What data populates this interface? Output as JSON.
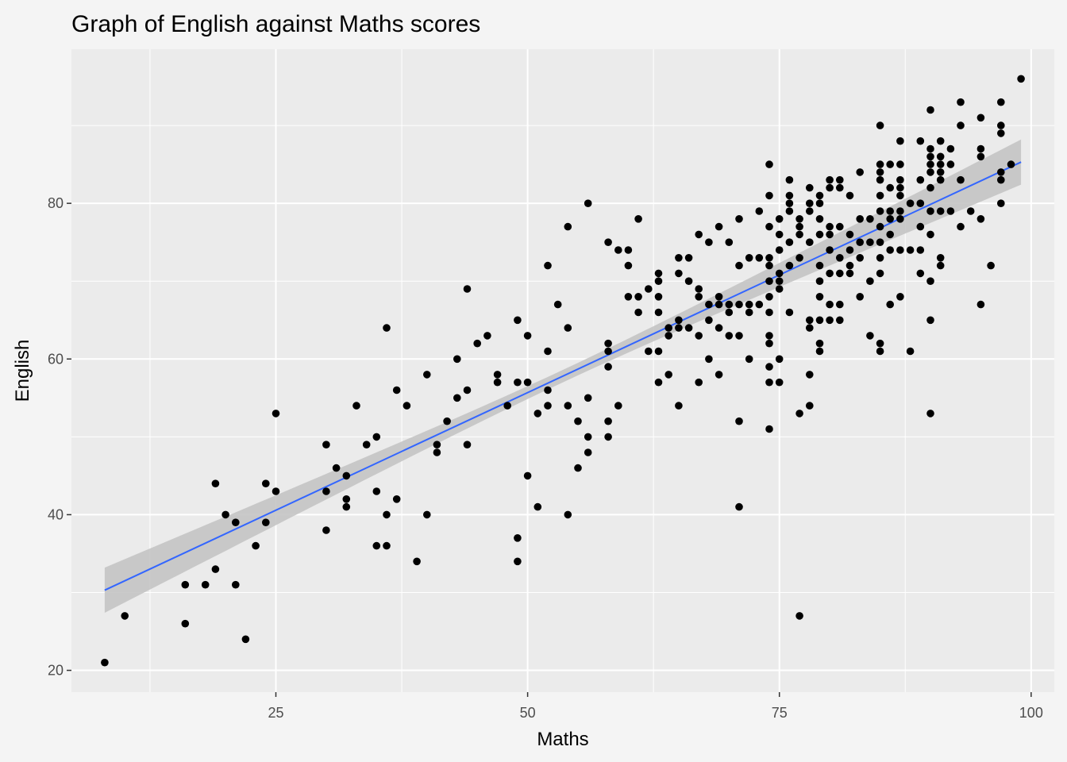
{
  "chart_data": {
    "type": "scatter",
    "title": "Graph of English against Maths scores",
    "xlabel": "Maths",
    "ylabel": "English",
    "xlim": [
      4.7,
      102.3
    ],
    "ylim": [
      17.2,
      99.8
    ],
    "x_ticks": [
      25,
      50,
      75,
      100
    ],
    "x_tick_labels": [
      "25",
      "50",
      "75",
      "100"
    ],
    "y_ticks": [
      20,
      40,
      60,
      80
    ],
    "y_tick_labels": [
      "20",
      "40",
      "60",
      "80"
    ],
    "grid": true,
    "colors": {
      "panel_background": "#ebebeb",
      "grid": "#ffffff",
      "points": "#000000",
      "trend_line": "#3366ff",
      "confidence_band": "#c4c4c4"
    },
    "trend_line": {
      "method": "linear",
      "x": [
        8,
        99
      ],
      "y": [
        30.3,
        85.3
      ],
      "ci_halfwidth_ends": 2.9,
      "ci_halfwidth_mid": 0.8
    },
    "points": [
      [
        8,
        21
      ],
      [
        10,
        27
      ],
      [
        16,
        31
      ],
      [
        16,
        26
      ],
      [
        18,
        31
      ],
      [
        19,
        44
      ],
      [
        19,
        33
      ],
      [
        20,
        40
      ],
      [
        21,
        39
      ],
      [
        21,
        31
      ],
      [
        22,
        24
      ],
      [
        23,
        36
      ],
      [
        24,
        44
      ],
      [
        24,
        39
      ],
      [
        25,
        53
      ],
      [
        25,
        43
      ],
      [
        30,
        49
      ],
      [
        30,
        43
      ],
      [
        30,
        38
      ],
      [
        31,
        46
      ],
      [
        32,
        45
      ],
      [
        32,
        42
      ],
      [
        32,
        41
      ],
      [
        33,
        54
      ],
      [
        34,
        49
      ],
      [
        35,
        50
      ],
      [
        35,
        43
      ],
      [
        35,
        36
      ],
      [
        36,
        64
      ],
      [
        36,
        40
      ],
      [
        36,
        36
      ],
      [
        37,
        56
      ],
      [
        37,
        42
      ],
      [
        38,
        54
      ],
      [
        39,
        34
      ],
      [
        40,
        58
      ],
      [
        40,
        40
      ],
      [
        41,
        49
      ],
      [
        41,
        48
      ],
      [
        42,
        52
      ],
      [
        43,
        60
      ],
      [
        43,
        55
      ],
      [
        44,
        69
      ],
      [
        44,
        56
      ],
      [
        44,
        49
      ],
      [
        45,
        62
      ],
      [
        46,
        63
      ],
      [
        47,
        58
      ],
      [
        47,
        57
      ],
      [
        48,
        54
      ],
      [
        49,
        65
      ],
      [
        49,
        57
      ],
      [
        49,
        37
      ],
      [
        49,
        34
      ],
      [
        50,
        63
      ],
      [
        50,
        57
      ],
      [
        50,
        45
      ],
      [
        51,
        53
      ],
      [
        51,
        41
      ],
      [
        52,
        72
      ],
      [
        52,
        61
      ],
      [
        52,
        56
      ],
      [
        52,
        54
      ],
      [
        53,
        67
      ],
      [
        54,
        77
      ],
      [
        54,
        64
      ],
      [
        54,
        54
      ],
      [
        54,
        40
      ],
      [
        55,
        52
      ],
      [
        55,
        46
      ],
      [
        56,
        80
      ],
      [
        56,
        55
      ],
      [
        56,
        50
      ],
      [
        56,
        48
      ],
      [
        58,
        75
      ],
      [
        58,
        62
      ],
      [
        58,
        61
      ],
      [
        58,
        59
      ],
      [
        58,
        52
      ],
      [
        58,
        50
      ],
      [
        59,
        74
      ],
      [
        59,
        54
      ],
      [
        60,
        74
      ],
      [
        60,
        72
      ],
      [
        60,
        68
      ],
      [
        61,
        78
      ],
      [
        61,
        68
      ],
      [
        61,
        66
      ],
      [
        62,
        69
      ],
      [
        62,
        61
      ],
      [
        63,
        71
      ],
      [
        63,
        70
      ],
      [
        63,
        68
      ],
      [
        63,
        66
      ],
      [
        63,
        61
      ],
      [
        63,
        57
      ],
      [
        64,
        64
      ],
      [
        64,
        63
      ],
      [
        64,
        58
      ],
      [
        65,
        73
      ],
      [
        65,
        71
      ],
      [
        65,
        65
      ],
      [
        65,
        64
      ],
      [
        65,
        54
      ],
      [
        66,
        73
      ],
      [
        66,
        70
      ],
      [
        66,
        64
      ],
      [
        67,
        76
      ],
      [
        67,
        69
      ],
      [
        67,
        68
      ],
      [
        67,
        63
      ],
      [
        67,
        57
      ],
      [
        68,
        75
      ],
      [
        68,
        67
      ],
      [
        68,
        65
      ],
      [
        68,
        60
      ],
      [
        69,
        77
      ],
      [
        69,
        68
      ],
      [
        69,
        67
      ],
      [
        69,
        64
      ],
      [
        69,
        58
      ],
      [
        70,
        75
      ],
      [
        70,
        67
      ],
      [
        70,
        66
      ],
      [
        70,
        63
      ],
      [
        71,
        78
      ],
      [
        71,
        72
      ],
      [
        71,
        67
      ],
      [
        71,
        63
      ],
      [
        71,
        52
      ],
      [
        71,
        41
      ],
      [
        72,
        73
      ],
      [
        72,
        67
      ],
      [
        72,
        66
      ],
      [
        72,
        60
      ],
      [
        73,
        79
      ],
      [
        73,
        73
      ],
      [
        73,
        67
      ],
      [
        74,
        85
      ],
      [
        74,
        81
      ],
      [
        74,
        77
      ],
      [
        74,
        73
      ],
      [
        74,
        72
      ],
      [
        74,
        70
      ],
      [
        74,
        68
      ],
      [
        74,
        66
      ],
      [
        74,
        63
      ],
      [
        74,
        62
      ],
      [
        74,
        59
      ],
      [
        74,
        57
      ],
      [
        74,
        51
      ],
      [
        75,
        78
      ],
      [
        75,
        76
      ],
      [
        75,
        74
      ],
      [
        75,
        71
      ],
      [
        75,
        70
      ],
      [
        75,
        69
      ],
      [
        75,
        60
      ],
      [
        75,
        57
      ],
      [
        76,
        83
      ],
      [
        76,
        81
      ],
      [
        76,
        80
      ],
      [
        76,
        79
      ],
      [
        76,
        75
      ],
      [
        76,
        72
      ],
      [
        76,
        66
      ],
      [
        77,
        78
      ],
      [
        77,
        76
      ],
      [
        77,
        77
      ],
      [
        77,
        73
      ],
      [
        77,
        53
      ],
      [
        77,
        27
      ],
      [
        78,
        82
      ],
      [
        78,
        80
      ],
      [
        78,
        79
      ],
      [
        78,
        75
      ],
      [
        78,
        65
      ],
      [
        78,
        64
      ],
      [
        78,
        58
      ],
      [
        78,
        54
      ],
      [
        79,
        81
      ],
      [
        79,
        80
      ],
      [
        79,
        78
      ],
      [
        79,
        76
      ],
      [
        79,
        72
      ],
      [
        79,
        70
      ],
      [
        79,
        68
      ],
      [
        79,
        65
      ],
      [
        79,
        62
      ],
      [
        79,
        61
      ],
      [
        80,
        83
      ],
      [
        80,
        82
      ],
      [
        80,
        77
      ],
      [
        80,
        76
      ],
      [
        80,
        74
      ],
      [
        80,
        71
      ],
      [
        80,
        67
      ],
      [
        80,
        65
      ],
      [
        81,
        83
      ],
      [
        81,
        82
      ],
      [
        81,
        77
      ],
      [
        81,
        73
      ],
      [
        81,
        71
      ],
      [
        81,
        67
      ],
      [
        81,
        65
      ],
      [
        82,
        81
      ],
      [
        82,
        76
      ],
      [
        82,
        74
      ],
      [
        82,
        72
      ],
      [
        82,
        71
      ],
      [
        83,
        84
      ],
      [
        83,
        78
      ],
      [
        83,
        75
      ],
      [
        83,
        73
      ],
      [
        83,
        68
      ],
      [
        84,
        78
      ],
      [
        84,
        75
      ],
      [
        84,
        70
      ],
      [
        84,
        63
      ],
      [
        85,
        90
      ],
      [
        85,
        85
      ],
      [
        85,
        84
      ],
      [
        85,
        83
      ],
      [
        85,
        81
      ],
      [
        85,
        79
      ],
      [
        85,
        77
      ],
      [
        85,
        75
      ],
      [
        85,
        73
      ],
      [
        85,
        71
      ],
      [
        85,
        62
      ],
      [
        85,
        61
      ],
      [
        86,
        85
      ],
      [
        86,
        82
      ],
      [
        86,
        79
      ],
      [
        86,
        78
      ],
      [
        86,
        76
      ],
      [
        86,
        74
      ],
      [
        86,
        67
      ],
      [
        87,
        88
      ],
      [
        87,
        85
      ],
      [
        87,
        83
      ],
      [
        87,
        82
      ],
      [
        87,
        81
      ],
      [
        87,
        79
      ],
      [
        87,
        78
      ],
      [
        87,
        74
      ],
      [
        87,
        68
      ],
      [
        88,
        80
      ],
      [
        88,
        74
      ],
      [
        88,
        61
      ],
      [
        89,
        88
      ],
      [
        89,
        83
      ],
      [
        89,
        80
      ],
      [
        89,
        77
      ],
      [
        89,
        74
      ],
      [
        89,
        71
      ],
      [
        90,
        92
      ],
      [
        90,
        87
      ],
      [
        90,
        86
      ],
      [
        90,
        85
      ],
      [
        90,
        84
      ],
      [
        90,
        82
      ],
      [
        90,
        79
      ],
      [
        90,
        76
      ],
      [
        90,
        70
      ],
      [
        90,
        65
      ],
      [
        90,
        53
      ],
      [
        91,
        88
      ],
      [
        91,
        86
      ],
      [
        91,
        85
      ],
      [
        91,
        84
      ],
      [
        91,
        83
      ],
      [
        91,
        79
      ],
      [
        91,
        73
      ],
      [
        91,
        72
      ],
      [
        92,
        87
      ],
      [
        92,
        85
      ],
      [
        92,
        79
      ],
      [
        93,
        93
      ],
      [
        93,
        90
      ],
      [
        93,
        83
      ],
      [
        93,
        77
      ],
      [
        94,
        79
      ],
      [
        95,
        91
      ],
      [
        95,
        87
      ],
      [
        95,
        86
      ],
      [
        95,
        78
      ],
      [
        95,
        67
      ],
      [
        96,
        72
      ],
      [
        97,
        93
      ],
      [
        97,
        90
      ],
      [
        97,
        89
      ],
      [
        97,
        84
      ],
      [
        97,
        83
      ],
      [
        97,
        80
      ],
      [
        98,
        85
      ],
      [
        99,
        96
      ]
    ]
  }
}
